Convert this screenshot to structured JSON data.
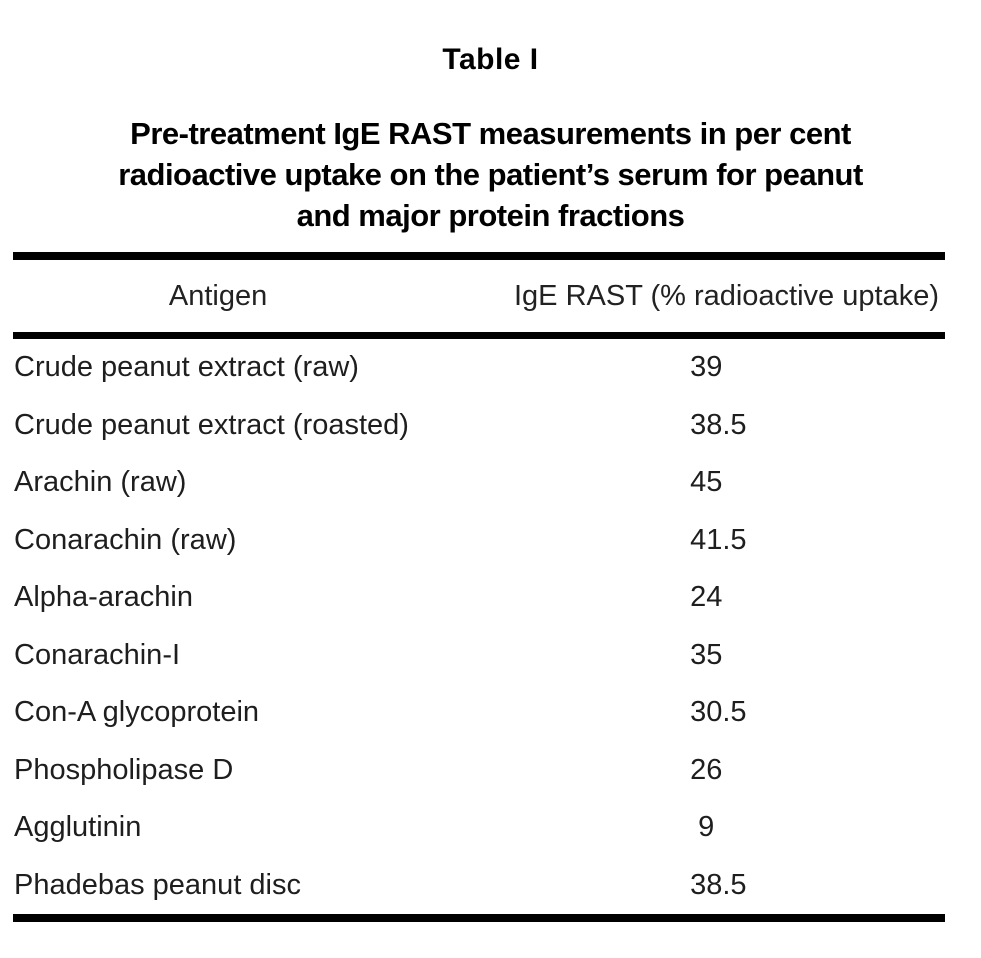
{
  "page": {
    "title": "Table I"
  },
  "caption": {
    "line1": "Pre-treatment IgE RAST measurements in per cent",
    "line2": "radioactive uptake on the patient’s serum for peanut",
    "line3": "and major protein fractions"
  },
  "table": {
    "columns": {
      "antigen": "Antigen",
      "value": "IgE RAST (% radioactive uptake)"
    },
    "rows": [
      {
        "antigen": "Crude peanut extract (raw)",
        "value": "39"
      },
      {
        "antigen": "Crude peanut extract (roasted)",
        "value": "38.5"
      },
      {
        "antigen": "Arachin (raw)",
        "value": "45"
      },
      {
        "antigen": "Conarachin (raw)",
        "value": "41.5"
      },
      {
        "antigen": "Alpha-arachin",
        "value": "24"
      },
      {
        "antigen": "Conarachin-I",
        "value": "35"
      },
      {
        "antigen": "Con-A glycoprotein",
        "value": "30.5"
      },
      {
        "antigen": "Phospholipase D",
        "value": "26"
      },
      {
        "antigen": "Agglutinin",
        "value": "9"
      },
      {
        "antigen": "Phadebas peanut disc",
        "value": "38.5"
      }
    ]
  },
  "colors": {
    "background": "#ffffff",
    "text": "#1e1e1e",
    "rule": "#000000"
  }
}
